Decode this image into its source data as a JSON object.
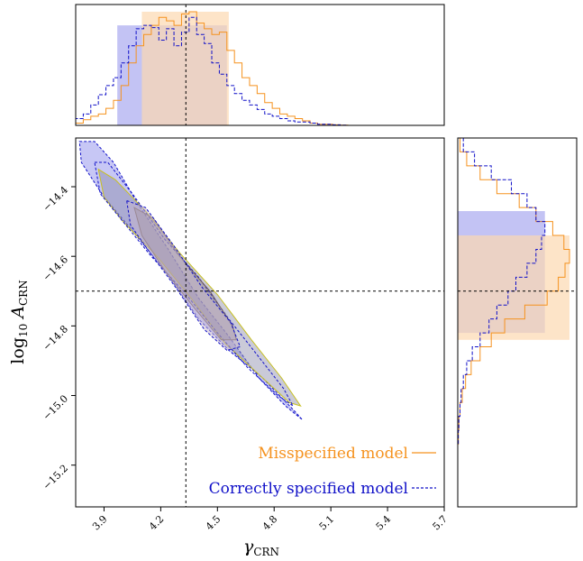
{
  "colors": {
    "misspecified": "#f5921e",
    "misspecified_fill": "#fcd9b1",
    "correct": "#1010c8",
    "correct_fill": "#b9b9f2",
    "overlap_fill": "#c6b6cb",
    "contour_misspecified": "#c8c020",
    "contour_inner": "#6e5a5a",
    "contour_fill": "#8a8aa8"
  },
  "chart_data": {
    "type": "corner",
    "legend": {
      "placement": "lower-right",
      "entries": [
        {
          "label": "Misspecified model",
          "style": "solid",
          "color": "#f5921e"
        },
        {
          "label": "Correctly specified model",
          "style": "dashed",
          "color": "#1010c8"
        }
      ]
    },
    "axes": {
      "x": {
        "label_main": "γ",
        "label_sub": "CRN",
        "range": [
          3.75,
          5.7
        ],
        "ticks": [
          3.9,
          4.2,
          4.5,
          4.8,
          5.1,
          5.4,
          5.7
        ],
        "tick_labels": [
          "3.9",
          "4.2",
          "4.5",
          "4.8",
          "5.1",
          "5.4",
          "5.7"
        ]
      },
      "y": {
        "label_prefix": "log",
        "label_sub1": "10",
        "label_main": " A",
        "label_sub2": "CRN",
        "range": [
          -15.32,
          -14.26
        ],
        "ticks": [
          -14.4,
          -14.6,
          -14.8,
          -15.0,
          -15.2
        ],
        "tick_labels": [
          "−14.4",
          "−14.6",
          "−14.8",
          "−15.0",
          "−15.2"
        ]
      }
    },
    "truth": {
      "gamma": 4.333,
      "log10_A": -14.7
    },
    "top_histograms": {
      "bin_edges": [
        3.75,
        3.79,
        3.83,
        3.87,
        3.91,
        3.95,
        3.99,
        4.03,
        4.07,
        4.11,
        4.15,
        4.19,
        4.23,
        4.27,
        4.31,
        4.35,
        4.39,
        4.43,
        4.47,
        4.51,
        4.55,
        4.59,
        4.63,
        4.67,
        4.71,
        4.75,
        4.79,
        4.83,
        4.87,
        4.91,
        4.95,
        4.99,
        5.03,
        5.07,
        5.11,
        5.15,
        5.19,
        5.23,
        5.27,
        5.31,
        5.35,
        5.39,
        5.43,
        5.47,
        5.51,
        5.55,
        5.59,
        5.63,
        5.67,
        5.7
      ],
      "misspecified": [
        0.02,
        0.05,
        0.08,
        0.1,
        0.15,
        0.22,
        0.35,
        0.55,
        0.7,
        0.8,
        0.88,
        0.95,
        0.92,
        0.88,
        0.98,
        1.0,
        0.9,
        0.85,
        0.8,
        0.82,
        0.66,
        0.55,
        0.42,
        0.35,
        0.28,
        0.2,
        0.15,
        0.1,
        0.08,
        0.06,
        0.04,
        0.02,
        0.01,
        0.01,
        0.005,
        0.002,
        0.0,
        0.0,
        0.0,
        0.0,
        0.0,
        0.0,
        0.0,
        0.0,
        0.0,
        0.0,
        0.0,
        0.0,
        0.0
      ],
      "correct": [
        0.06,
        0.1,
        0.18,
        0.27,
        0.35,
        0.42,
        0.55,
        0.7,
        0.85,
        0.88,
        0.86,
        0.75,
        0.85,
        0.7,
        0.82,
        0.95,
        0.8,
        0.72,
        0.55,
        0.45,
        0.35,
        0.28,
        0.22,
        0.18,
        0.14,
        0.1,
        0.08,
        0.06,
        0.04,
        0.03,
        0.03,
        0.02,
        0.01,
        0.01,
        0.005,
        0.002,
        0.0,
        0.0,
        0.0,
        0.0,
        0.0,
        0.0,
        0.0,
        0.0,
        0.0,
        0.0,
        0.0,
        0.0,
        0.0
      ],
      "credible_interval_misspecified": [
        4.1,
        4.56
      ],
      "credible_interval_correct": [
        3.97,
        4.55
      ]
    },
    "right_histograms": {
      "bin_edges": [
        -14.26,
        -14.3,
        -14.34,
        -14.38,
        -14.42,
        -14.46,
        -14.5,
        -14.54,
        -14.58,
        -14.62,
        -14.66,
        -14.7,
        -14.74,
        -14.78,
        -14.82,
        -14.86,
        -14.9,
        -14.94,
        -14.98,
        -15.02,
        -15.06,
        -15.1,
        -15.14,
        -15.18,
        -15.22,
        -15.26,
        -15.32
      ],
      "misspecified": [
        0.02,
        0.08,
        0.2,
        0.35,
        0.55,
        0.7,
        0.85,
        0.95,
        1.0,
        0.96,
        0.9,
        0.8,
        0.6,
        0.42,
        0.3,
        0.2,
        0.12,
        0.07,
        0.04,
        0.02,
        0.01,
        0.005,
        0.0,
        0.0,
        0.0,
        0.0
      ],
      "correct": [
        0.05,
        0.15,
        0.3,
        0.48,
        0.62,
        0.7,
        0.78,
        0.75,
        0.7,
        0.62,
        0.52,
        0.45,
        0.35,
        0.28,
        0.2,
        0.13,
        0.08,
        0.05,
        0.03,
        0.02,
        0.01,
        0.005,
        0.0,
        0.0,
        0.0,
        0.0
      ],
      "credible_interval_misspecified": [
        -14.84,
        -14.54
      ],
      "credible_interval_correct": [
        -14.82,
        -14.47
      ]
    },
    "contours": {
      "correct_outer": [
        [
          3.77,
          -14.27
        ],
        [
          3.85,
          -14.27
        ],
        [
          3.95,
          -14.33
        ],
        [
          4.08,
          -14.45
        ],
        [
          4.24,
          -14.58
        ],
        [
          4.4,
          -14.72
        ],
        [
          4.56,
          -14.83
        ],
        [
          4.72,
          -14.95
        ],
        [
          4.86,
          -15.03
        ],
        [
          4.95,
          -15.07
        ],
        [
          4.9,
          -15.04
        ],
        [
          4.74,
          -14.95
        ],
        [
          4.56,
          -14.87
        ],
        [
          4.4,
          -14.78
        ],
        [
          4.22,
          -14.64
        ],
        [
          4.04,
          -14.52
        ],
        [
          3.9,
          -14.43
        ],
        [
          3.78,
          -14.33
        ]
      ],
      "correct_mid": [
        [
          3.85,
          -14.33
        ],
        [
          3.92,
          -14.33
        ],
        [
          4.05,
          -14.42
        ],
        [
          4.22,
          -14.55
        ],
        [
          4.4,
          -14.66
        ],
        [
          4.56,
          -14.78
        ],
        [
          4.72,
          -14.89
        ],
        [
          4.85,
          -14.98
        ],
        [
          4.9,
          -15.03
        ],
        [
          4.82,
          -15.0
        ],
        [
          4.66,
          -14.92
        ],
        [
          4.5,
          -14.82
        ],
        [
          4.32,
          -14.7
        ],
        [
          4.15,
          -14.6
        ],
        [
          4.0,
          -14.5
        ],
        [
          3.88,
          -14.42
        ]
      ],
      "correct_inner": [
        [
          4.02,
          -14.44
        ],
        [
          4.12,
          -14.46
        ],
        [
          4.27,
          -14.57
        ],
        [
          4.42,
          -14.69
        ],
        [
          4.57,
          -14.79
        ],
        [
          4.62,
          -14.86
        ],
        [
          4.55,
          -14.87
        ],
        [
          4.43,
          -14.81
        ],
        [
          4.28,
          -14.69
        ],
        [
          4.13,
          -14.58
        ],
        [
          4.04,
          -14.51
        ]
      ],
      "misspecified_outer": [
        [
          3.87,
          -14.35
        ],
        [
          3.96,
          -14.38
        ],
        [
          4.12,
          -14.47
        ],
        [
          4.3,
          -14.59
        ],
        [
          4.5,
          -14.71
        ],
        [
          4.68,
          -14.84
        ],
        [
          4.84,
          -14.95
        ],
        [
          4.94,
          -15.03
        ],
        [
          4.88,
          -15.02
        ],
        [
          4.72,
          -14.94
        ],
        [
          4.54,
          -14.85
        ],
        [
          4.36,
          -14.72
        ],
        [
          4.18,
          -14.6
        ],
        [
          4.0,
          -14.5
        ],
        [
          3.9,
          -14.43
        ]
      ],
      "misspecified_inner": [
        [
          4.06,
          -14.46
        ],
        [
          4.16,
          -14.49
        ],
        [
          4.3,
          -14.6
        ],
        [
          4.46,
          -14.7
        ],
        [
          4.58,
          -14.8
        ],
        [
          4.6,
          -14.84
        ],
        [
          4.52,
          -14.84
        ],
        [
          4.38,
          -14.75
        ],
        [
          4.22,
          -14.64
        ],
        [
          4.1,
          -14.54
        ]
      ]
    }
  }
}
